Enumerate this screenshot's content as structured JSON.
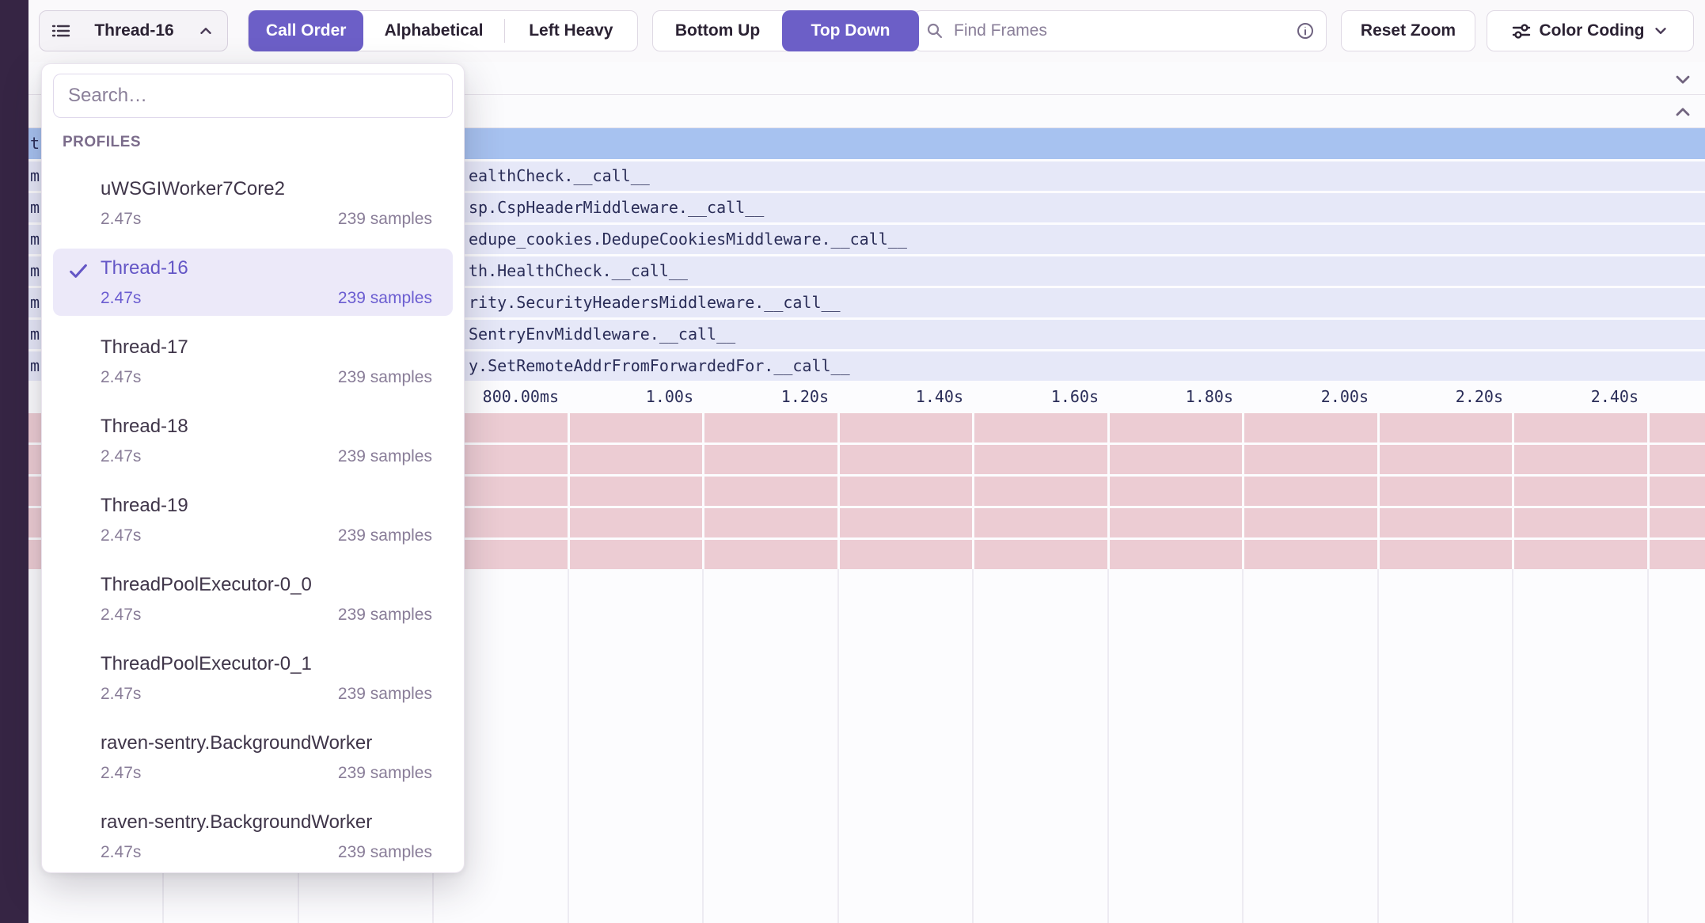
{
  "toolbar": {
    "thread_selector": {
      "label": "Thread-16"
    },
    "sort": {
      "segments": [
        "Call Order",
        "Alphabetical",
        "Left Heavy"
      ],
      "active": "Call Order"
    },
    "direction": {
      "segments": [
        "Bottom Up",
        "Top Down"
      ],
      "active": "Top Down"
    },
    "find_frames": {
      "placeholder": "Find Frames"
    },
    "reset_zoom_label": "Reset Zoom",
    "color_coding_label": "Color Coding"
  },
  "sections": {
    "collapsed_top_chevron": "down",
    "expanded_bottom_chevron": "up"
  },
  "dropdown": {
    "search_placeholder": "Search…",
    "section_label": "PROFILES",
    "items": [
      {
        "name": "uWSGIWorker7Core2",
        "duration": "2.47s",
        "samples": "239 samples",
        "selected": false
      },
      {
        "name": "Thread-16",
        "duration": "2.47s",
        "samples": "239 samples",
        "selected": true
      },
      {
        "name": "Thread-17",
        "duration": "2.47s",
        "samples": "239 samples",
        "selected": false
      },
      {
        "name": "Thread-18",
        "duration": "2.47s",
        "samples": "239 samples",
        "selected": false
      },
      {
        "name": "Thread-19",
        "duration": "2.47s",
        "samples": "239 samples",
        "selected": false
      },
      {
        "name": "ThreadPoolExecutor-0_0",
        "duration": "2.47s",
        "samples": "239 samples",
        "selected": false
      },
      {
        "name": "ThreadPoolExecutor-0_1",
        "duration": "2.47s",
        "samples": "239 samples",
        "selected": false
      },
      {
        "name": "raven-sentry.BackgroundWorker",
        "duration": "2.47s",
        "samples": "239 samples",
        "selected": false
      },
      {
        "name": "raven-sentry.BackgroundWorker",
        "duration": "2.47s",
        "samples": "239 samples",
        "selected": false
      }
    ]
  },
  "flamegraph": {
    "rows": [
      {
        "left_char": "t",
        "label": "",
        "kind": "highlight"
      },
      {
        "left_char": "m",
        "label": "ealthCheck.__call__",
        "kind": "frame"
      },
      {
        "left_char": "m",
        "label": "sp.CspHeaderMiddleware.__call__",
        "kind": "frame"
      },
      {
        "left_char": "m",
        "label": "edupe_cookies.DedupeCookiesMiddleware.__call__",
        "kind": "frame"
      },
      {
        "left_char": "m",
        "label": "th.HealthCheck.__call__",
        "kind": "frame"
      },
      {
        "left_char": "m",
        "label": "rity.SecurityHeadersMiddleware.__call__",
        "kind": "frame"
      },
      {
        "left_char": "m",
        "label": "SentryEnvMiddleware.__call__",
        "kind": "frame"
      },
      {
        "left_char": "m",
        "label": "y.SetRemoteAddrFromForwardedFor.__call__",
        "kind": "frame"
      }
    ],
    "axis_ticks": [
      "800.00ms",
      "1.00s",
      "1.20s",
      "1.40s",
      "1.60s",
      "1.80s",
      "2.00s",
      "2.20s",
      "2.40s"
    ],
    "pink_row_count": 5
  },
  "colors": {
    "accent": "#6C5FC7",
    "row_highlight": "#A7C2F0",
    "row_frame": "#E6E8F8",
    "row_system": "#ECCCD3",
    "rail": "#362544"
  }
}
